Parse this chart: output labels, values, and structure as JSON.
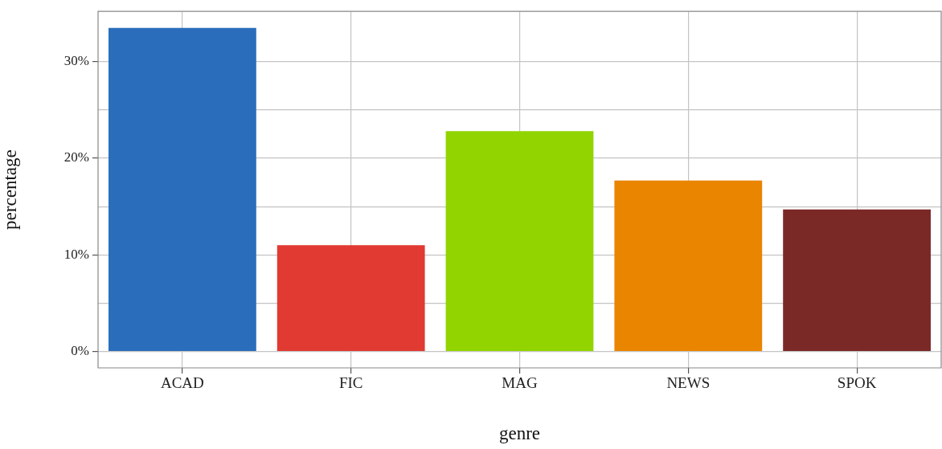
{
  "chart_data": {
    "type": "bar",
    "xlabel": "genre",
    "ylabel": "percentage",
    "categories": [
      "ACAD",
      "FIC",
      "MAG",
      "NEWS",
      "SPOK"
    ],
    "values": [
      33.5,
      11.0,
      22.8,
      17.7,
      14.7
    ],
    "colors": [
      "#2a6ebb",
      "#e03a33",
      "#92d400",
      "#ea8500",
      "#7b2927"
    ],
    "ylim": [
      -1.7,
      35.2
    ],
    "yticks": [
      {
        "value": 0,
        "label": "0%"
      },
      {
        "value": 5,
        "label": null
      },
      {
        "value": 10,
        "label": "10%"
      },
      {
        "value": 15,
        "label": null
      },
      {
        "value": 20,
        "label": "20%"
      },
      {
        "value": 25,
        "label": null
      },
      {
        "value": 30,
        "label": "30%"
      }
    ],
    "grid": true,
    "legend": false
  }
}
